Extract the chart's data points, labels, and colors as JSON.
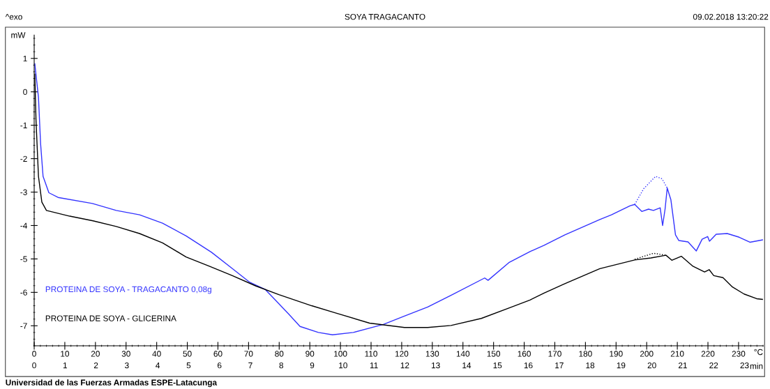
{
  "chart_data": {
    "type": "line",
    "title": "SOYA TRAGACANTO",
    "xlabel": "°C",
    "ylabel": "mW",
    "x2label": "min",
    "annotations": [
      "^exo",
      "09.02.2018 13:20:22",
      "Universidad de las Fuerzas Armadas ESPE-Latacunga"
    ],
    "xlim": [
      0,
      238
    ],
    "xticks": [
      0,
      10,
      20,
      30,
      40,
      50,
      60,
      70,
      80,
      90,
      100,
      110,
      120,
      130,
      140,
      150,
      160,
      170,
      180,
      190,
      200,
      210,
      220,
      230
    ],
    "x2lim": [
      0,
      23.6
    ],
    "x2ticks": [
      0,
      1,
      2,
      3,
      4,
      5,
      6,
      7,
      8,
      9,
      10,
      11,
      12,
      13,
      14,
      15,
      16,
      17,
      18,
      19,
      20,
      21,
      22,
      23
    ],
    "ylim": [
      -7.6,
      1.7
    ],
    "yticks": [
      1,
      0,
      -1,
      -2,
      -3,
      -4,
      -5,
      -6,
      -7
    ],
    "grid": false,
    "legend": "bottom left",
    "marker": "none",
    "line_style": "solid",
    "series": [
      {
        "name": "PROTEINA DE SOYA - TRAGACANTO 0,08g",
        "color": "#3333ff",
        "x": [
          0.2,
          1.4,
          2.1,
          2.9,
          4.8,
          7.8,
          19,
          26.8,
          34.4,
          41.9,
          49.6,
          57.9,
          64.7,
          70.4,
          75.4,
          83,
          86.8,
          92.8,
          97.4,
          104.2,
          114,
          120.9,
          128.5,
          136.1,
          147.1,
          148.2,
          155,
          161.9,
          166.5,
          173.3,
          184.7,
          188.5,
          194.6,
          196.1,
          198.4,
          200.6,
          202.2,
          204.4,
          205.2,
          206,
          206.7,
          207.9,
          209.4,
          210.5,
          213.5,
          216.2,
          218.1,
          219.9,
          220.5,
          222.7,
          226.3,
          230.2,
          233.7,
          237.8
        ],
        "values": [
          0.84,
          -0.17,
          -1.56,
          -2.53,
          -3.02,
          -3.16,
          -3.34,
          -3.55,
          -3.68,
          -3.93,
          -4.31,
          -4.8,
          -5.29,
          -5.7,
          -5.91,
          -6.64,
          -7.02,
          -7.2,
          -7.27,
          -7.2,
          -6.96,
          -6.71,
          -6.44,
          -6.09,
          -5.57,
          -5.64,
          -5.11,
          -4.78,
          -4.59,
          -4.28,
          -3.82,
          -3.68,
          -3.41,
          -3.37,
          -3.58,
          -3.51,
          -3.55,
          -3.47,
          -4.0,
          -3.51,
          -2.88,
          -3.23,
          -4.28,
          -4.45,
          -4.49,
          -4.76,
          -4.41,
          -4.33,
          -4.47,
          -4.26,
          -4.24,
          -4.35,
          -4.5,
          -4.43
        ]
      },
      {
        "name": "PROTEINA DE SOYA - GLICERINA",
        "color": "#000000",
        "x": [
          0.2,
          0.6,
          1.4,
          2.5,
          4,
          11.6,
          19.2,
          26.8,
          34.4,
          41.9,
          49.6,
          57.2,
          64.7,
          72.4,
          79.9,
          90.6,
          98.2,
          109.5,
          120.9,
          128.5,
          136.1,
          146,
          155,
          161.9,
          166.5,
          173.3,
          184.7,
          196.1,
          201.4,
          206.3,
          208.2,
          211.3,
          215.1,
          218.9,
          220.4,
          221.9,
          224.9,
          228,
          231.8,
          235.9,
          237.8
        ],
        "values": [
          0.53,
          -0.86,
          -2.53,
          -3.3,
          -3.55,
          -3.72,
          -3.86,
          -4.03,
          -4.24,
          -4.52,
          -4.94,
          -5.22,
          -5.5,
          -5.81,
          -6.07,
          -6.4,
          -6.61,
          -6.92,
          -7.05,
          -7.05,
          -6.99,
          -6.78,
          -6.47,
          -6.23,
          -6.02,
          -5.74,
          -5.29,
          -5.03,
          -4.97,
          -4.89,
          -5.04,
          -4.92,
          -5.22,
          -5.39,
          -5.32,
          -5.5,
          -5.56,
          -5.84,
          -6.05,
          -6.19,
          -6.21
        ]
      },
      {
        "color": "#3333ff",
        "line_style": "dotted",
        "x": [
          196.1,
          199,
          202.9,
          205,
          206.7
        ],
        "values": [
          -3.37,
          -2.9,
          -2.53,
          -2.6,
          -2.88
        ]
      },
      {
        "color": "#000000",
        "line_style": "dotted",
        "x": [
          196.1,
          202.2,
          206.3
        ],
        "values": [
          -5.01,
          -4.83,
          -4.89
        ]
      }
    ]
  }
}
